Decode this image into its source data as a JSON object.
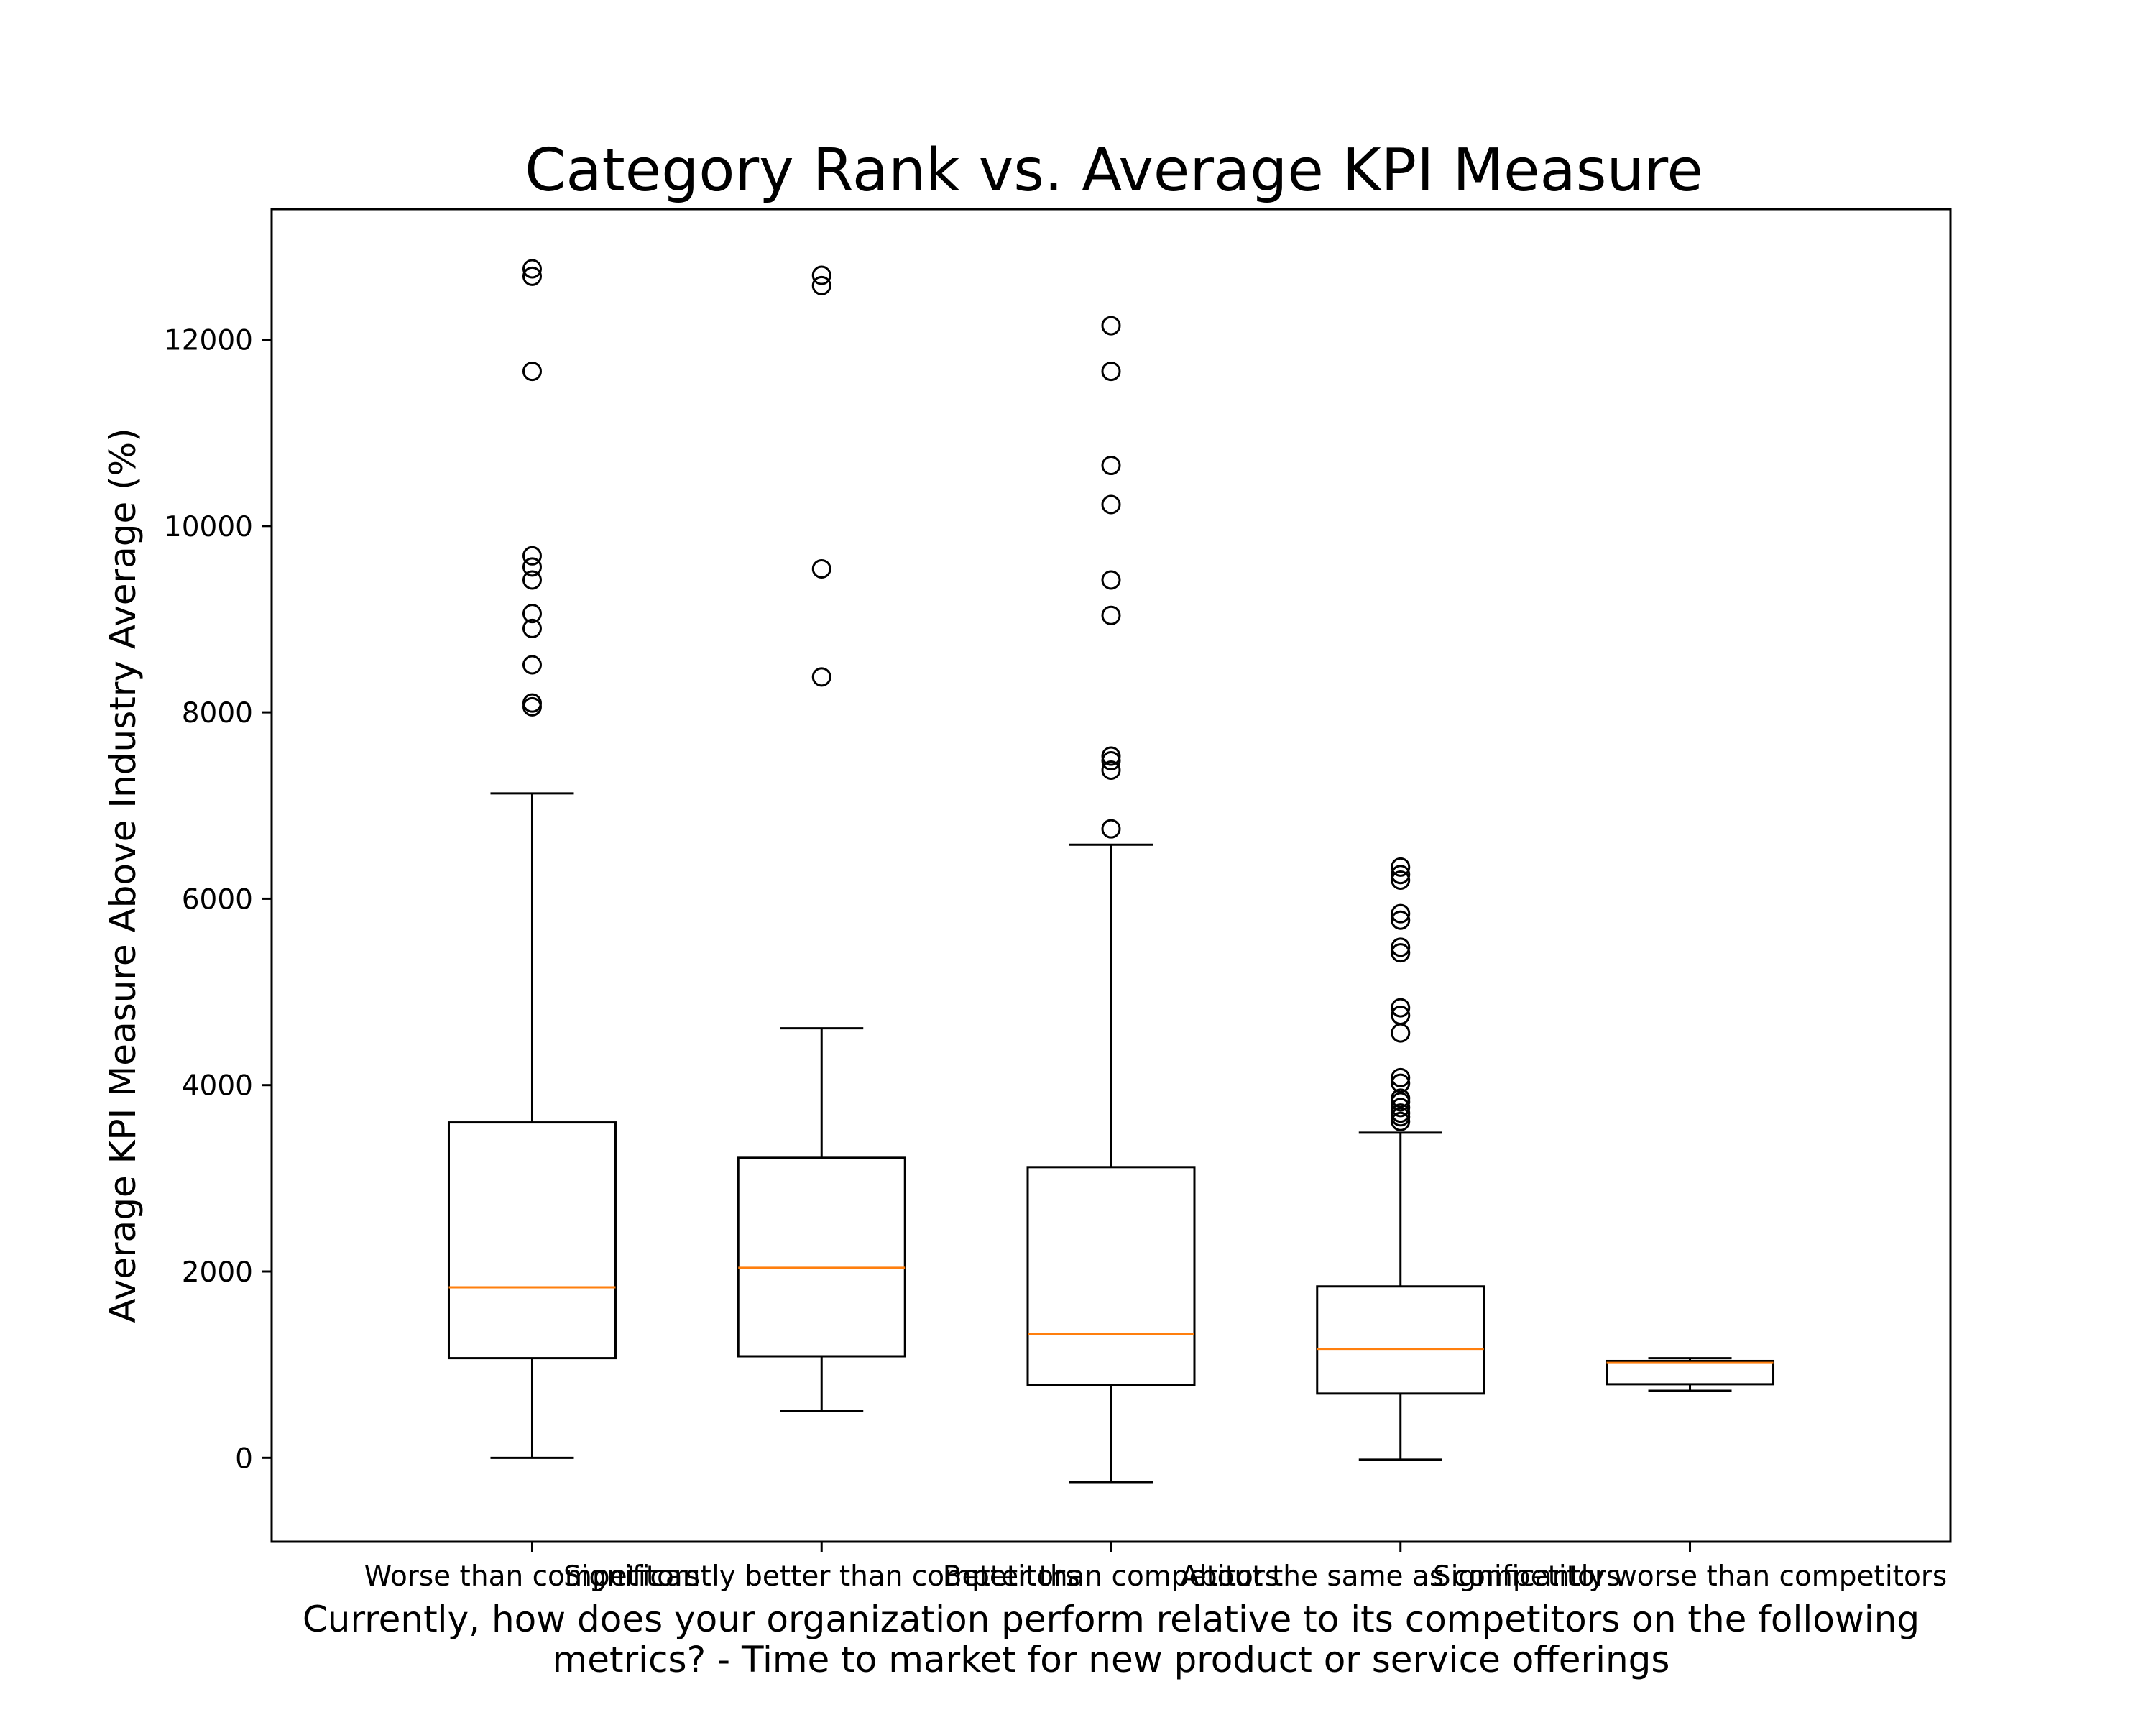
{
  "chart_data": {
    "type": "boxplot",
    "title": "Category Rank vs. Average KPI Measure",
    "xlabel_line1": "Currently, how does your organization perform relative to its competitors on the following",
    "xlabel_line2": "metrics? - Time to market for new product or service offerings",
    "ylabel": "Average KPI Measure Above Industry Average (%)",
    "ylim": [
      -900,
      13400
    ],
    "yticks": [
      0,
      2000,
      4000,
      6000,
      8000,
      10000,
      12000
    ],
    "ytick_labels": [
      "0",
      "2000",
      "4000",
      "6000",
      "8000",
      "10000",
      "12000"
    ],
    "grid": false,
    "colors": {
      "box": "#000000",
      "median": "#ff7f0e",
      "flier": "#000000"
    },
    "categories": [
      "Worse than competitors",
      "Significantly better than competitors",
      "Better than competitors",
      "About the same as competitors",
      "Significantly worse than competitors"
    ],
    "boxes": [
      {
        "whislo": 0,
        "q1": 1070,
        "med": 1830,
        "q3": 3600,
        "whishi": 7130,
        "fliers": [
          8060,
          8100,
          8510,
          8900,
          9060,
          9420,
          9560,
          9680,
          11660,
          12680,
          12760
        ]
      },
      {
        "whislo": 500,
        "q1": 1090,
        "med": 2040,
        "q3": 3220,
        "whishi": 4610,
        "fliers": [
          8380,
          9540,
          12580,
          12690
        ]
      },
      {
        "whislo": -260,
        "q1": 780,
        "med": 1330,
        "q3": 3120,
        "whishi": 6580,
        "fliers": [
          6750,
          7380,
          7480,
          7530,
          9040,
          9420,
          10230,
          10650,
          11660,
          12150
        ]
      },
      {
        "whislo": -20,
        "q1": 690,
        "med": 1170,
        "q3": 1840,
        "whishi": 3490,
        "fliers": [
          3610,
          3660,
          3700,
          3760,
          3820,
          3860,
          4020,
          4080,
          4560,
          4750,
          4830,
          5420,
          5480,
          5770,
          5840,
          6200,
          6260,
          6340
        ]
      },
      {
        "whislo": 720,
        "q1": 790,
        "med": 1020,
        "q3": 1040,
        "whishi": 1070,
        "fliers": []
      }
    ]
  }
}
